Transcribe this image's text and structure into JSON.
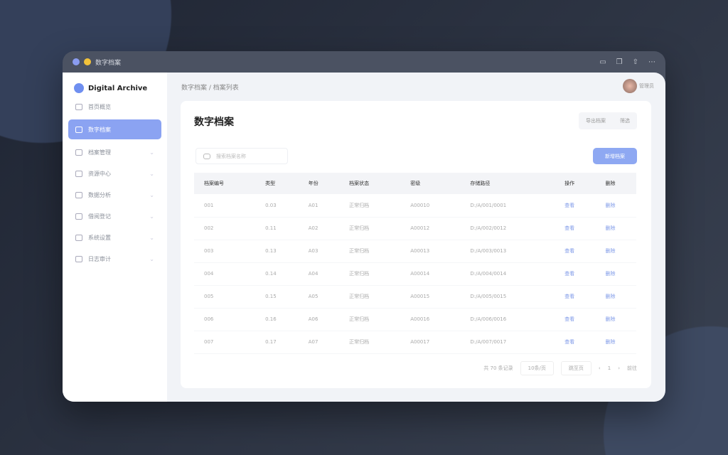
{
  "window": {
    "title": "数字档案"
  },
  "brand": "Digital Archive",
  "sidebar": {
    "items": [
      {
        "label": "首页概览",
        "icon": "home-icon"
      },
      {
        "label": "数字档案",
        "icon": "archive-icon",
        "active": true
      },
      {
        "label": "档案管理",
        "icon": "folder-icon"
      },
      {
        "label": "资源中心",
        "icon": "resource-icon"
      },
      {
        "label": "数据分析",
        "icon": "chart-icon"
      },
      {
        "label": "借阅登记",
        "icon": "book-icon"
      },
      {
        "label": "系统设置",
        "icon": "settings-icon"
      },
      {
        "label": "日志审计",
        "icon": "log-icon"
      }
    ]
  },
  "breadcrumb": "数字档案 / 档案列表",
  "user": "管理员",
  "page": {
    "title": "数字档案",
    "seg": [
      "导出档案",
      "筛选"
    ],
    "search_placeholder": "搜索档案名称",
    "add_button": "新增档案"
  },
  "table": {
    "headers": [
      "档案编号",
      "类型",
      "年份",
      "档案状态",
      "密级",
      "存储路径",
      "操作",
      "删除"
    ],
    "rows": [
      [
        "001",
        "0.03",
        "A01",
        "正常归档",
        "A00010",
        "D:/A/001/0001",
        "查看",
        "删除"
      ],
      [
        "002",
        "0.11",
        "A02",
        "正常归档",
        "A00012",
        "D:/A/002/0012",
        "查看",
        "删除"
      ],
      [
        "003",
        "0.13",
        "A03",
        "正常归档",
        "A00013",
        "D:/A/003/0013",
        "查看",
        "删除"
      ],
      [
        "004",
        "0.14",
        "A04",
        "正常归档",
        "A00014",
        "D:/A/004/0014",
        "查看",
        "删除"
      ],
      [
        "005",
        "0.15",
        "A05",
        "正常归档",
        "A00015",
        "D:/A/005/0015",
        "查看",
        "删除"
      ],
      [
        "006",
        "0.16",
        "A06",
        "正常归档",
        "A00016",
        "D:/A/006/0016",
        "查看",
        "删除"
      ],
      [
        "007",
        "0.17",
        "A07",
        "正常归档",
        "A00017",
        "D:/A/007/0017",
        "查看",
        "删除"
      ]
    ]
  },
  "pagination": {
    "total": "共 70 条记录",
    "size": "10条/页",
    "jump": "跳至页",
    "page": "1",
    "prev": "‹",
    "next": "›",
    "goto": "前往"
  }
}
